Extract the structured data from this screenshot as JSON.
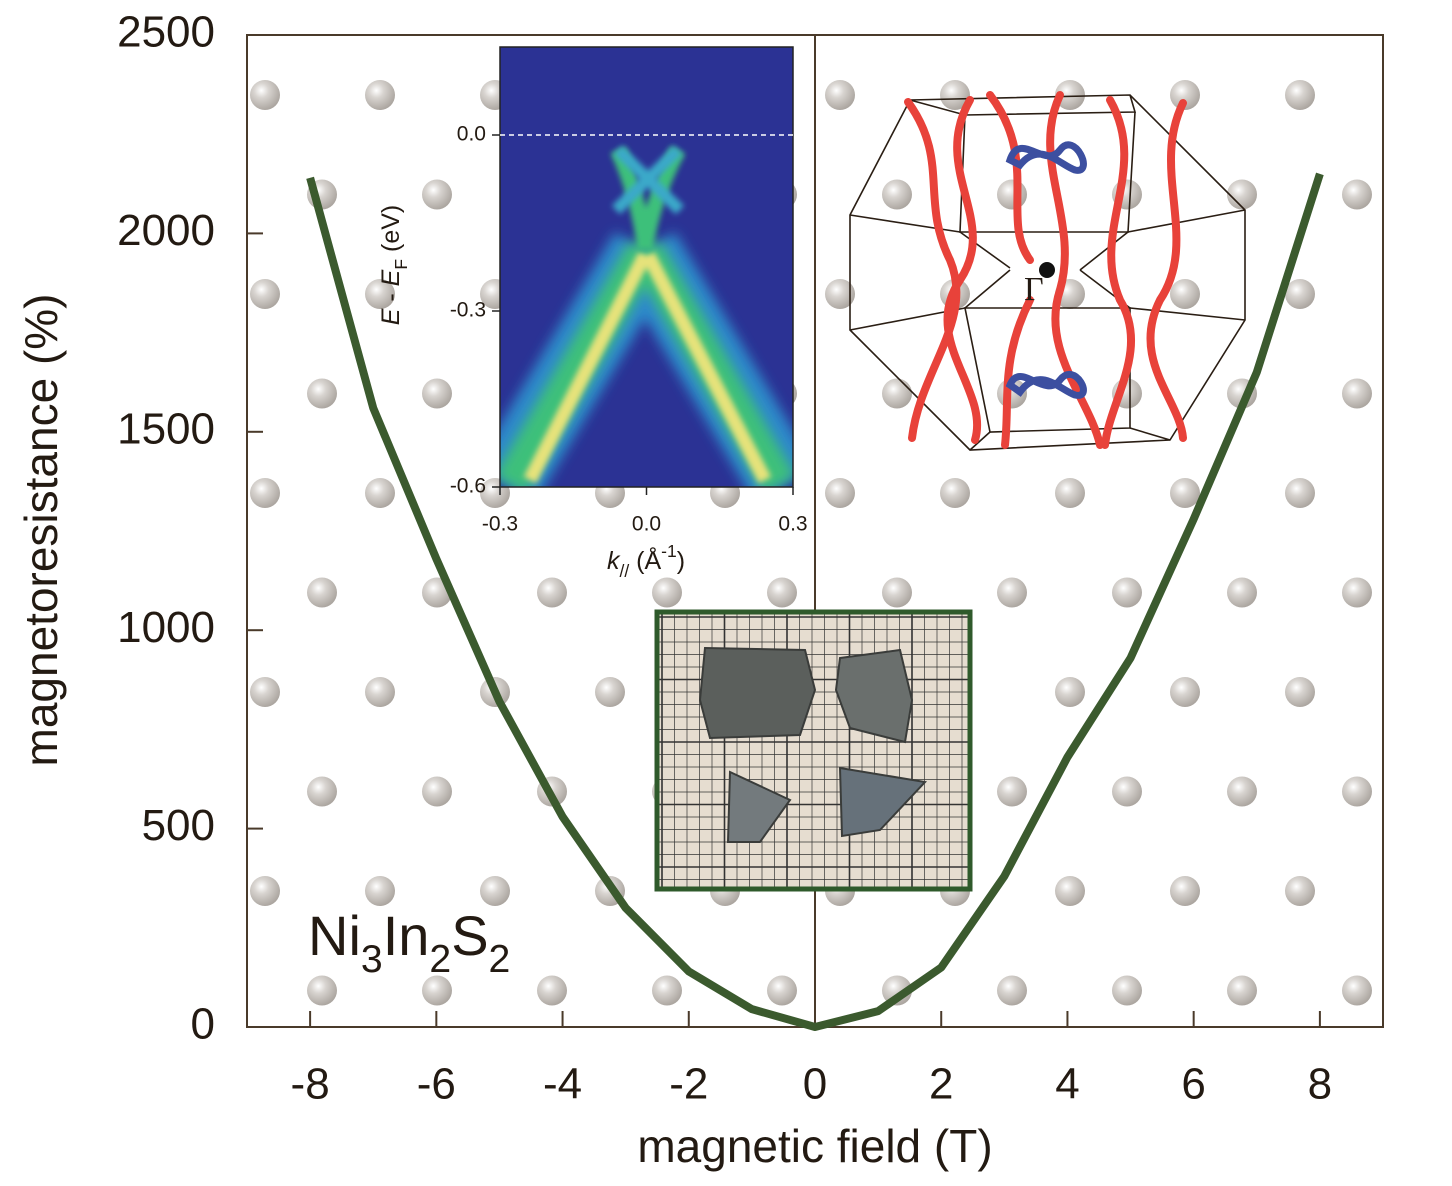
{
  "chart_data": [
    {
      "type": "line",
      "xlabel": "magnetic field (T)",
      "ylabel": "magnetoresistance (%)",
      "annotation": "Ni3In2S2",
      "x": [
        -8,
        -7,
        -6,
        -5,
        -4,
        -3,
        -2,
        -1,
        0,
        1,
        2,
        3,
        4,
        5,
        6,
        7,
        8
      ],
      "values": [
        2140,
        1560,
        1180,
        820,
        530,
        300,
        140,
        45,
        0,
        40,
        150,
        380,
        680,
        930,
        1280,
        1650,
        2150
      ],
      "color": "#3b5a2e",
      "xlim": [
        -9,
        9
      ],
      "ylim": [
        0,
        2500
      ],
      "xticks": [
        -8,
        -6,
        -4,
        -2,
        0,
        2,
        4,
        6,
        8
      ],
      "yticks": [
        0,
        500,
        1000,
        1500,
        2000,
        2500
      ]
    },
    {
      "type": "image",
      "xlabel": "k// (Å-1)",
      "ylabel": "E - EF (eV)",
      "xlim": [
        -0.3,
        0.3
      ],
      "ylim": [
        -0.6,
        0.15
      ],
      "xticks": [
        -0.3,
        {
          "value": 0,
          "label": "0.0"
        },
        0.3
      ],
      "yticks": [
        {
          "value": 0,
          "label": "0.0"
        },
        -0.3,
        -0.6
      ]
    },
    {
      "type": "diagram",
      "label": "Γ"
    }
  ]
}
